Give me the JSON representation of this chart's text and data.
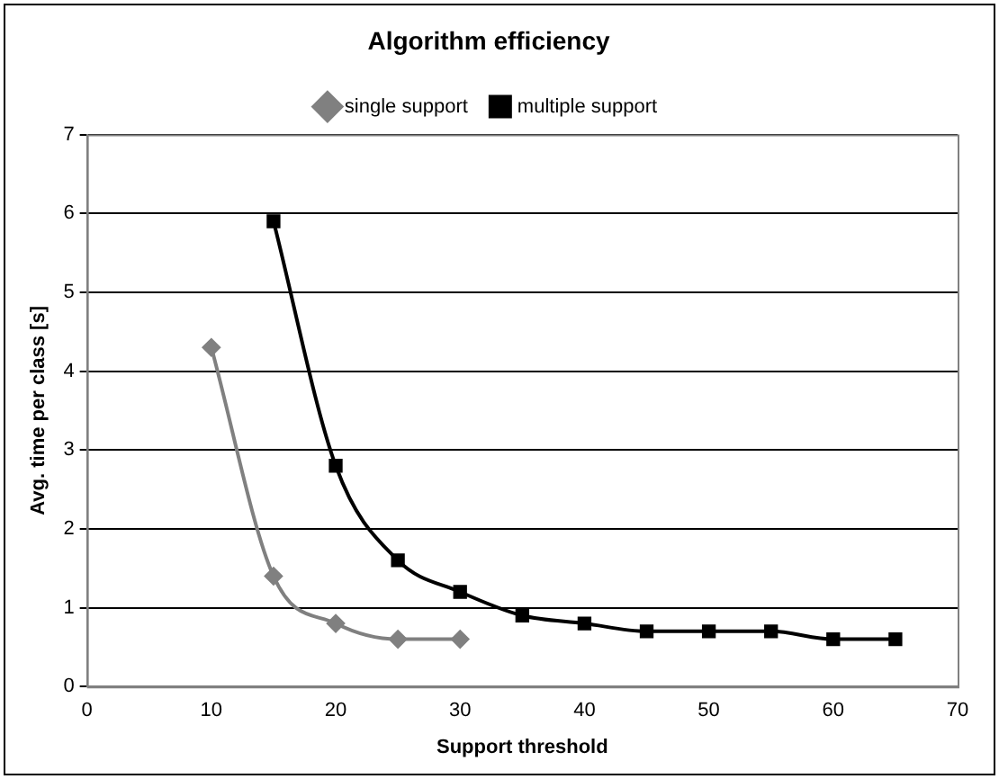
{
  "chart_data": {
    "type": "line",
    "title": "Algorithm efficiency",
    "xlabel": "Support threshold",
    "ylabel": "Avg. time per class [s]",
    "xlim": [
      0,
      70
    ],
    "xticks": [
      0,
      10,
      20,
      30,
      40,
      50,
      60,
      70
    ],
    "ylim": [
      0,
      7
    ],
    "yticks": [
      0,
      1,
      2,
      3,
      4,
      5,
      6,
      7
    ],
    "grid": "y",
    "legend": "top",
    "series": [
      {
        "name": "single support",
        "color": "#808080",
        "marker": "diamond",
        "x": [
          10,
          15,
          20,
          25,
          30
        ],
        "values": [
          4.3,
          1.4,
          0.8,
          0.6,
          0.6
        ]
      },
      {
        "name": "multiple support",
        "color": "#000000",
        "marker": "square",
        "x": [
          15,
          20,
          25,
          30,
          35,
          40,
          45,
          50,
          55,
          60,
          65
        ],
        "values": [
          5.9,
          2.8,
          1.6,
          1.2,
          0.9,
          0.8,
          0.7,
          0.7,
          0.7,
          0.6,
          0.6
        ]
      }
    ]
  }
}
